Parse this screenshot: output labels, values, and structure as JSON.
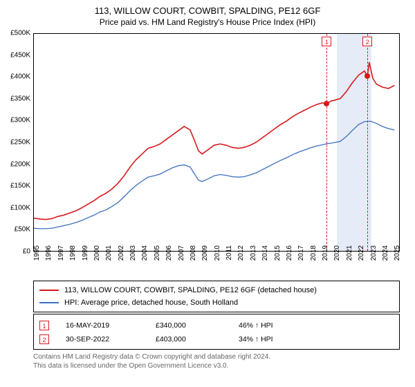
{
  "title": "113, WILLOW COURT, COWBIT, SPALDING, PE12 6GF",
  "subtitle": "Price paid vs. HM Land Registry's House Price Index (HPI)",
  "chart": {
    "type": "line",
    "background_color": "#ffffff",
    "border_color": "#000000",
    "x_year_min": 1995,
    "x_year_max": 2025.5,
    "x_ticks": [
      1995,
      1996,
      1997,
      1998,
      1999,
      2000,
      2001,
      2002,
      2003,
      2004,
      2005,
      2006,
      2007,
      2008,
      2009,
      2010,
      2011,
      2012,
      2013,
      2014,
      2015,
      2016,
      2017,
      2018,
      2019,
      2020,
      2021,
      2022,
      2023,
      2024,
      2025
    ],
    "y_min": 0,
    "y_max": 500000,
    "y_tick_step": 50000,
    "y_ticks_labels": [
      "£0",
      "£50K",
      "£100K",
      "£150K",
      "£200K",
      "£250K",
      "£300K",
      "£350K",
      "£400K",
      "£450K",
      "£500K"
    ],
    "series": [
      {
        "id": "property",
        "label": "113, WILLOW COURT, COWBIT, SPALDING, PE12 6GF (detached house)",
        "color": "#d8181c",
        "line_width": 1.6,
        "points": [
          [
            1995.0,
            78
          ],
          [
            1995.5,
            76
          ],
          [
            1996.0,
            75
          ],
          [
            1996.5,
            77
          ],
          [
            1997.0,
            82
          ],
          [
            1997.5,
            85
          ],
          [
            1998.0,
            90
          ],
          [
            1998.5,
            95
          ],
          [
            1999.0,
            102
          ],
          [
            1999.5,
            110
          ],
          [
            2000.0,
            118
          ],
          [
            2000.5,
            128
          ],
          [
            2001.0,
            135
          ],
          [
            2001.5,
            145
          ],
          [
            2002.0,
            158
          ],
          [
            2002.5,
            175
          ],
          [
            2003.0,
            195
          ],
          [
            2003.5,
            212
          ],
          [
            2004.0,
            225
          ],
          [
            2004.5,
            238
          ],
          [
            2005.0,
            242
          ],
          [
            2005.5,
            248
          ],
          [
            2006.0,
            258
          ],
          [
            2006.5,
            268
          ],
          [
            2007.0,
            278
          ],
          [
            2007.5,
            288
          ],
          [
            2008.0,
            280
          ],
          [
            2008.3,
            260
          ],
          [
            2008.7,
            232
          ],
          [
            2009.0,
            225
          ],
          [
            2009.5,
            235
          ],
          [
            2010.0,
            245
          ],
          [
            2010.5,
            248
          ],
          [
            2011.0,
            245
          ],
          [
            2011.5,
            240
          ],
          [
            2012.0,
            238
          ],
          [
            2012.5,
            240
          ],
          [
            2013.0,
            245
          ],
          [
            2013.5,
            252
          ],
          [
            2014.0,
            262
          ],
          [
            2014.5,
            272
          ],
          [
            2015.0,
            282
          ],
          [
            2015.5,
            292
          ],
          [
            2016.0,
            300
          ],
          [
            2016.5,
            310
          ],
          [
            2017.0,
            318
          ],
          [
            2017.5,
            325
          ],
          [
            2018.0,
            332
          ],
          [
            2018.5,
            338
          ],
          [
            2019.0,
            342
          ],
          [
            2019.37,
            340
          ],
          [
            2019.7,
            346
          ],
          [
            2020.0,
            348
          ],
          [
            2020.5,
            352
          ],
          [
            2021.0,
            368
          ],
          [
            2021.5,
            388
          ],
          [
            2022.0,
            405
          ],
          [
            2022.5,
            415
          ],
          [
            2022.75,
            403
          ],
          [
            2022.9,
            435
          ],
          [
            2023.2,
            398
          ],
          [
            2023.5,
            385
          ],
          [
            2024.0,
            378
          ],
          [
            2024.5,
            375
          ],
          [
            2025.0,
            382
          ]
        ]
      },
      {
        "id": "hpi",
        "label": "HPI: Average price, detached house, South Holland",
        "color": "#3b6fbf",
        "line_width": 1.3,
        "points": [
          [
            1995.0,
            55
          ],
          [
            1995.5,
            54
          ],
          [
            1996.0,
            54
          ],
          [
            1996.5,
            55
          ],
          [
            1997.0,
            58
          ],
          [
            1997.5,
            61
          ],
          [
            1998.0,
            64
          ],
          [
            1998.5,
            68
          ],
          [
            1999.0,
            73
          ],
          [
            1999.5,
            79
          ],
          [
            2000.0,
            85
          ],
          [
            2000.5,
            92
          ],
          [
            2001.0,
            97
          ],
          [
            2001.5,
            105
          ],
          [
            2002.0,
            114
          ],
          [
            2002.5,
            127
          ],
          [
            2003.0,
            141
          ],
          [
            2003.5,
            153
          ],
          [
            2004.0,
            163
          ],
          [
            2004.5,
            172
          ],
          [
            2005.0,
            175
          ],
          [
            2005.5,
            179
          ],
          [
            2006.0,
            186
          ],
          [
            2006.5,
            193
          ],
          [
            2007.0,
            198
          ],
          [
            2007.5,
            200
          ],
          [
            2008.0,
            195
          ],
          [
            2008.3,
            182
          ],
          [
            2008.7,
            165
          ],
          [
            2009.0,
            162
          ],
          [
            2009.5,
            168
          ],
          [
            2010.0,
            175
          ],
          [
            2010.5,
            178
          ],
          [
            2011.0,
            176
          ],
          [
            2011.5,
            173
          ],
          [
            2012.0,
            172
          ],
          [
            2012.5,
            173
          ],
          [
            2013.0,
            177
          ],
          [
            2013.5,
            182
          ],
          [
            2014.0,
            189
          ],
          [
            2014.5,
            196
          ],
          [
            2015.0,
            203
          ],
          [
            2015.5,
            210
          ],
          [
            2016.0,
            216
          ],
          [
            2016.5,
            223
          ],
          [
            2017.0,
            229
          ],
          [
            2017.5,
            234
          ],
          [
            2018.0,
            239
          ],
          [
            2018.5,
            243
          ],
          [
            2019.0,
            246
          ],
          [
            2019.5,
            249
          ],
          [
            2020.0,
            251
          ],
          [
            2020.5,
            254
          ],
          [
            2021.0,
            265
          ],
          [
            2021.5,
            279
          ],
          [
            2022.0,
            292
          ],
          [
            2022.5,
            299
          ],
          [
            2023.0,
            300
          ],
          [
            2023.5,
            295
          ],
          [
            2024.0,
            288
          ],
          [
            2024.5,
            283
          ],
          [
            2025.0,
            280
          ]
        ]
      }
    ],
    "highlight_band": {
      "start_year": 2020.2,
      "end_year": 2023.1,
      "color": "#d0daf0"
    },
    "sale_markers": [
      {
        "idx": "1",
        "year": 2019.37,
        "price": 340000,
        "color": "#d8181c"
      },
      {
        "idx": "2",
        "year": 2022.75,
        "price": 403000,
        "color": "#d8181c"
      }
    ],
    "marker_dash_color": "#d8181c"
  },
  "legend": {
    "rows": [
      {
        "color": "#d8181c",
        "text": "113, WILLOW COURT, COWBIT, SPALDING, PE12 6GF (detached house)"
      },
      {
        "color": "#3b6fbf",
        "text": "HPI: Average price, detached house, South Holland"
      }
    ]
  },
  "sales": [
    {
      "idx": "1",
      "color": "#d8181c",
      "date": "16-MAY-2019",
      "price": "£340,000",
      "delta": "46% ↑ HPI"
    },
    {
      "idx": "2",
      "color": "#d8181c",
      "date": "30-SEP-2022",
      "price": "£403,000",
      "delta": "34% ↑ HPI"
    }
  ],
  "footer_line1": "Contains HM Land Registry data © Crown copyright and database right 2024.",
  "footer_line2": "This data is licensed under the Open Government Licence v3.0."
}
